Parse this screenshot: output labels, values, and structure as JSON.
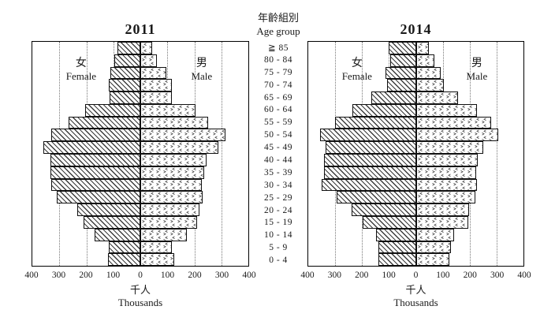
{
  "center_axis": {
    "title_zh": "年齡組別",
    "title_en": "Age group"
  },
  "axis": {
    "unit_zh": "千人",
    "unit_en": "Thousands",
    "tick_labels": [
      "400",
      "300",
      "200",
      "100",
      "0",
      "100",
      "200",
      "300",
      "400"
    ],
    "max_per_side": 400
  },
  "chart_data": [
    {
      "type": "bar",
      "subtype": "population-pyramid",
      "title": "2011",
      "xlabel_zh": "千人",
      "xlabel_en": "Thousands",
      "xlim": [
        -400,
        400
      ],
      "xticks": [
        "400",
        "300",
        "200",
        "100",
        "0",
        "100",
        "200",
        "300",
        "400"
      ],
      "grid": "dotted-vertical",
      "categories": [
        "≧ 85",
        "80 - 84",
        "75 - 79",
        "70 - 74",
        "65 - 69",
        "60 - 64",
        "55 - 59",
        "50 - 54",
        "45 - 49",
        "40 - 44",
        "35 - 39",
        "30 - 34",
        "25 - 29",
        "20 - 24",
        "15 - 19",
        "10 - 14",
        "5 - 9",
        "0 - 4"
      ],
      "series": [
        {
          "name": "Female",
          "name_zh": "女",
          "side": "left",
          "values": [
            85,
            95,
            112,
            118,
            115,
            205,
            265,
            330,
            358,
            332,
            333,
            330,
            310,
            235,
            210,
            170,
            118,
            120
          ]
        },
        {
          "name": "Male",
          "name_zh": "男",
          "side": "right",
          "values": [
            44,
            60,
            97,
            118,
            116,
            203,
            252,
            315,
            290,
            244,
            236,
            228,
            232,
            220,
            211,
            173,
            118,
            125
          ]
        }
      ]
    },
    {
      "type": "bar",
      "subtype": "population-pyramid",
      "title": "2014",
      "xlabel_zh": "千人",
      "xlabel_en": "Thousands",
      "xlim": [
        -400,
        400
      ],
      "xticks": [
        "400",
        "300",
        "200",
        "100",
        "0",
        "100",
        "200",
        "300",
        "400"
      ],
      "grid": "dotted-vertical",
      "categories": [
        "≧ 85",
        "80 - 84",
        "75 - 79",
        "70 - 74",
        "65 - 69",
        "60 - 64",
        "55 - 59",
        "50 - 54",
        "45 - 49",
        "40 - 44",
        "35 - 39",
        "30 - 34",
        "25 - 29",
        "20 - 24",
        "15 - 19",
        "10 - 14",
        "5 - 9",
        "0 - 4"
      ],
      "series": [
        {
          "name": "Female",
          "name_zh": "女",
          "side": "left",
          "values": [
            100,
            96,
            114,
            106,
            165,
            235,
            300,
            355,
            335,
            340,
            340,
            350,
            295,
            238,
            197,
            149,
            139,
            139
          ]
        },
        {
          "name": "Male",
          "name_zh": "男",
          "side": "right",
          "values": [
            48,
            70,
            92,
            104,
            156,
            228,
            280,
            305,
            252,
            230,
            225,
            228,
            220,
            198,
            196,
            141,
            129,
            124
          ]
        }
      ]
    }
  ]
}
